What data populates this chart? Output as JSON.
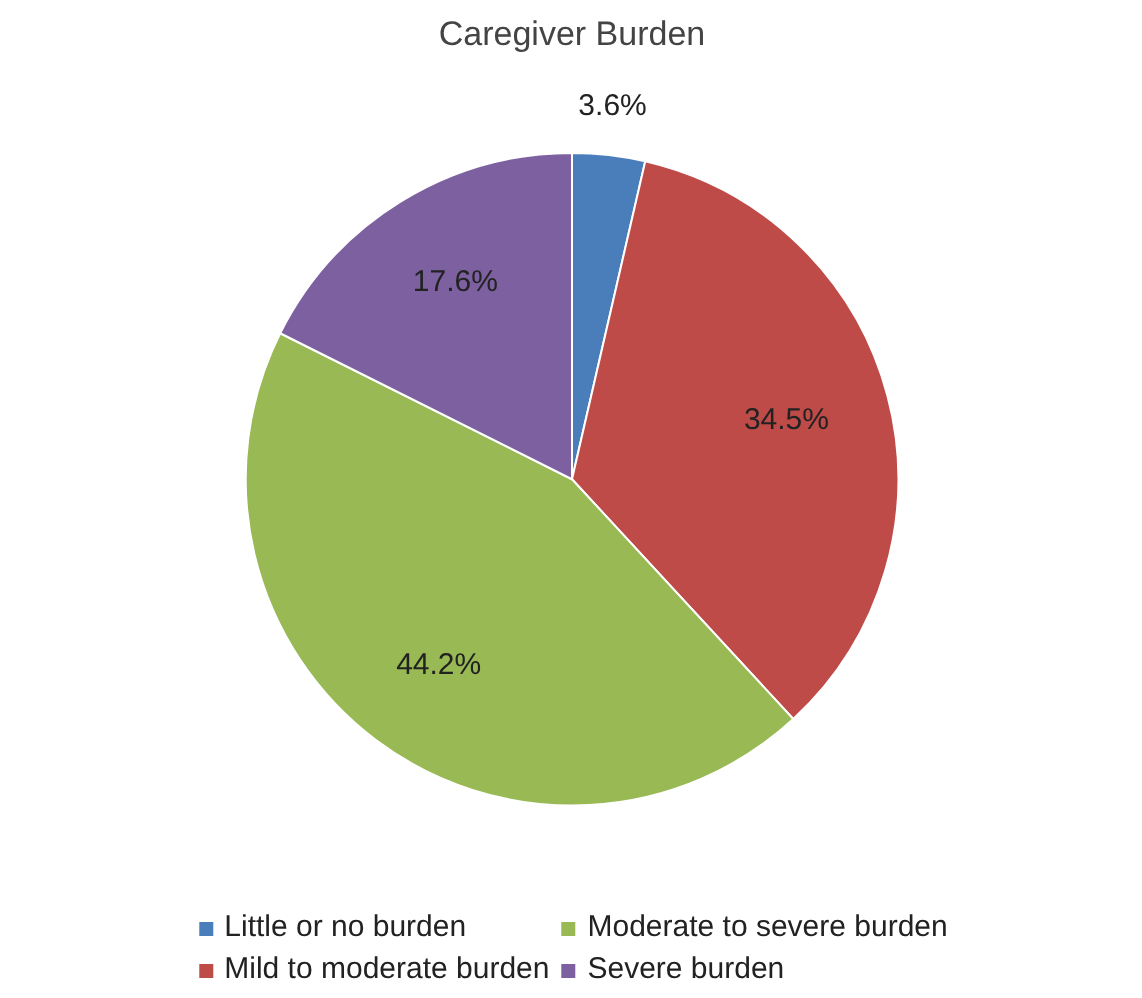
{
  "chart_data": {
    "type": "pie",
    "title": "Caregiver Burden",
    "categories": [
      "Little or no burden",
      "Mild to moderate burden",
      "Moderate to severe burden",
      "Severe burden"
    ],
    "values": [
      3.6,
      34.5,
      44.2,
      17.6
    ],
    "colors": [
      "#4a7ebb",
      "#be4b48",
      "#98b954",
      "#7d60a0"
    ],
    "value_labels": [
      "3.6%",
      "34.5%",
      "44.2%",
      "17.6%"
    ],
    "legend": "bottom"
  }
}
